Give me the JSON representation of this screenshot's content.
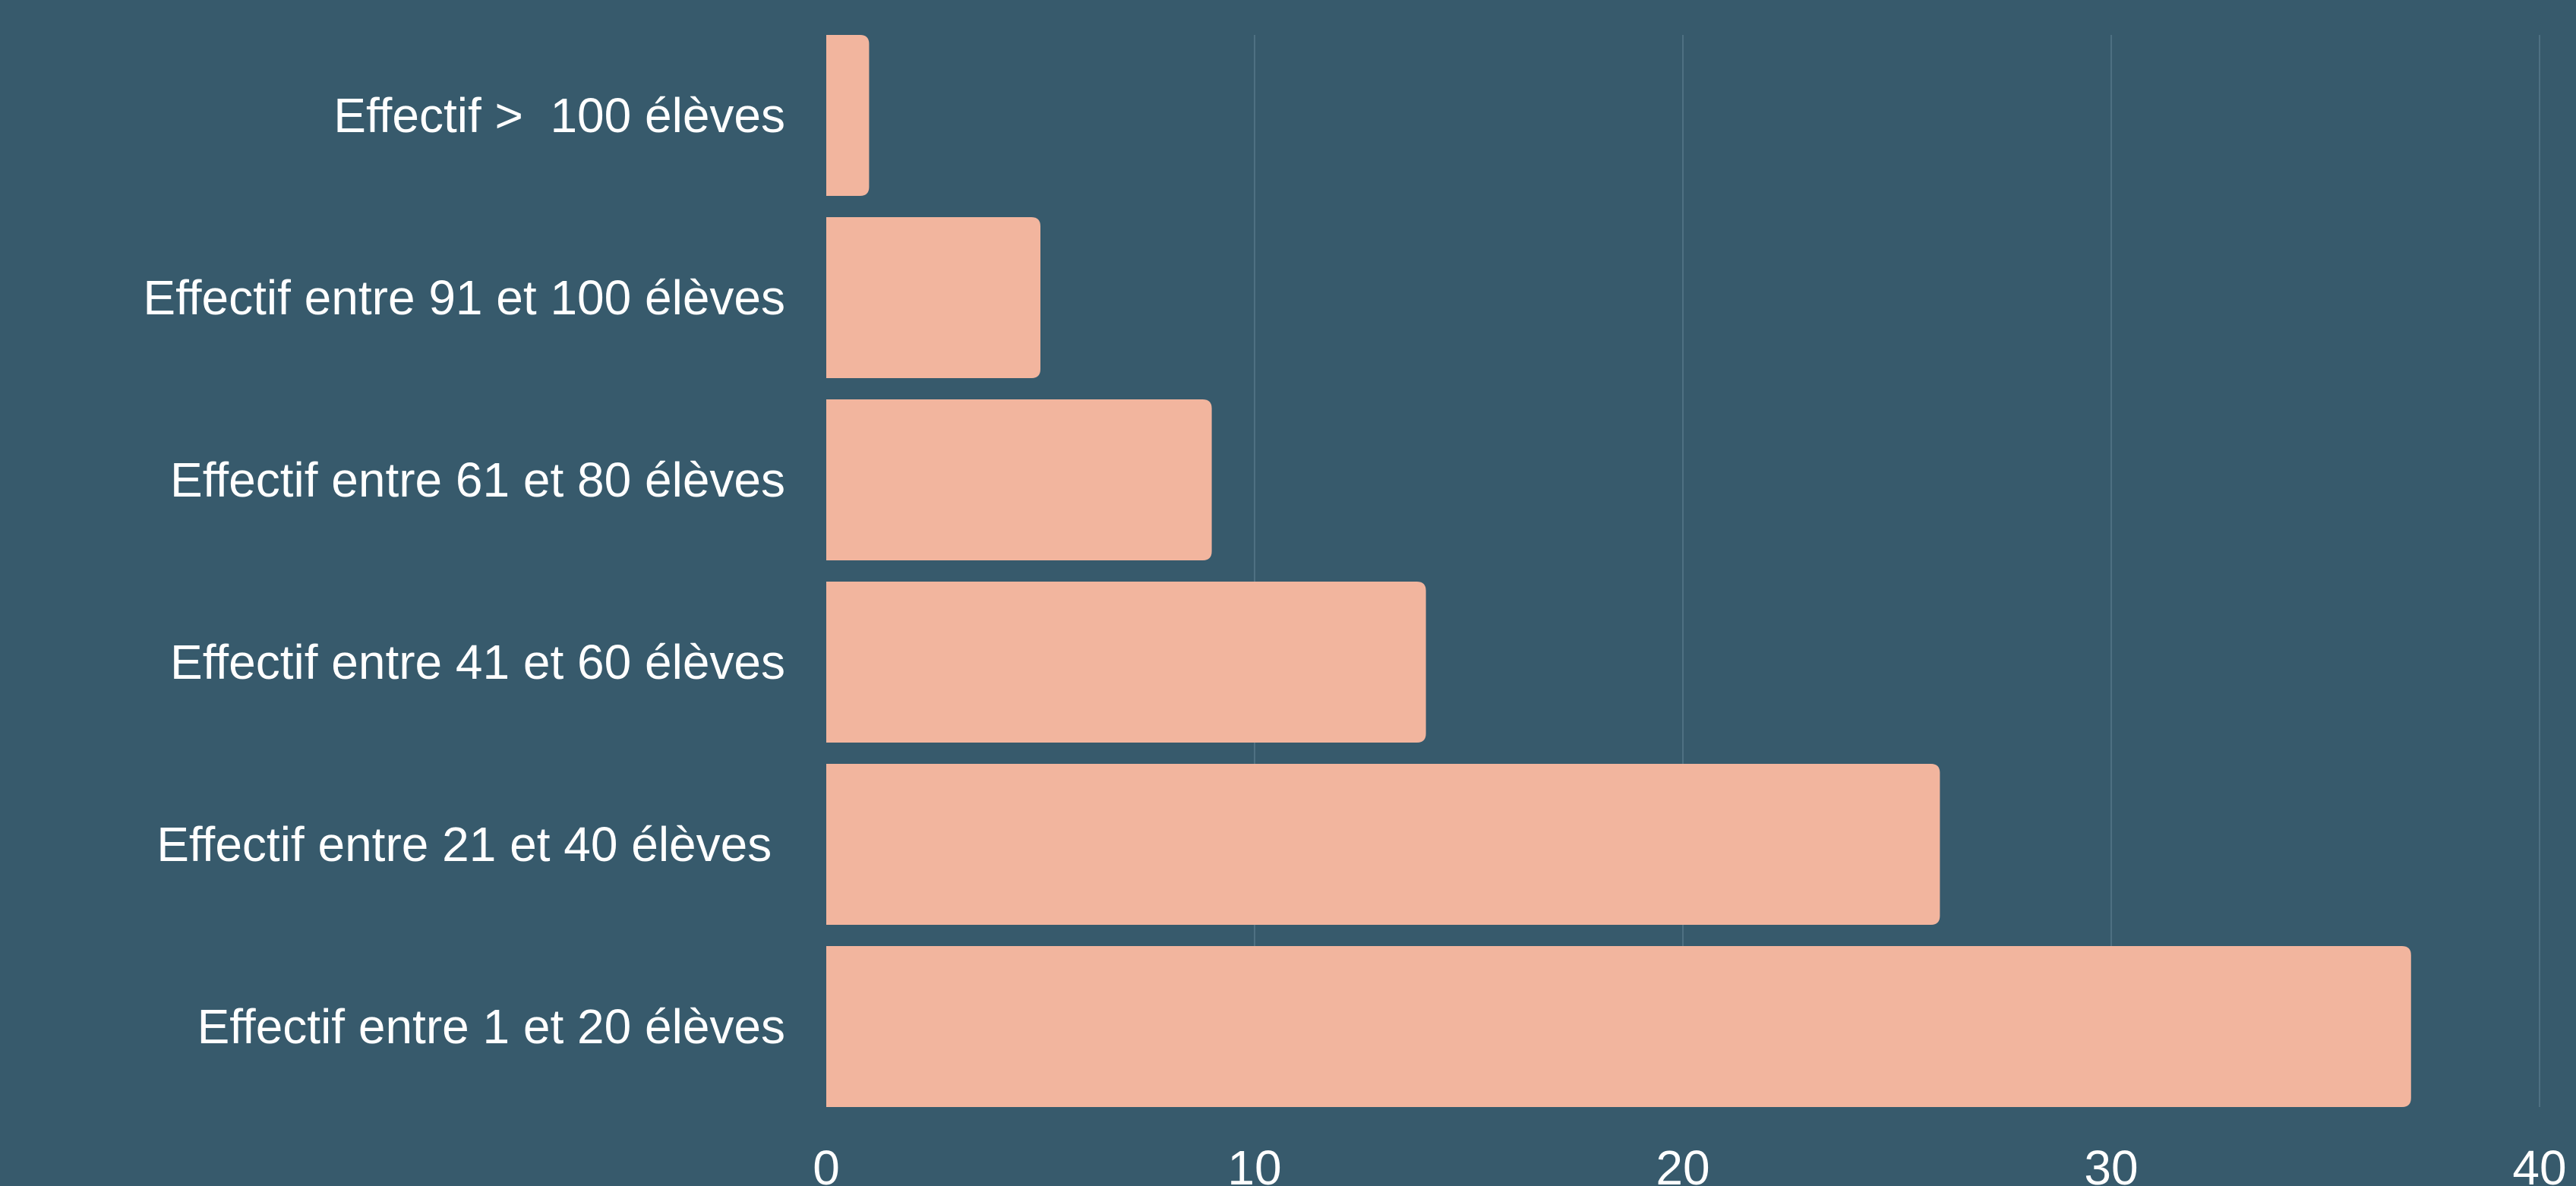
{
  "colors": {
    "background": "#375a6c",
    "bar": "#f2b59e",
    "grid": "#4e7082",
    "text": "#ffffff"
  },
  "chart_data": {
    "type": "bar",
    "orientation": "horizontal",
    "title": "",
    "xlabel": "",
    "ylabel": "",
    "categories": [
      "Effectif >  100 élèves",
      "Effectif entre 91 et 100 élèves",
      "Effectif entre 61 et 80 élèves",
      "Effectif entre 41 et 60 élèves",
      "Effectif entre 21 et 40 élèves ",
      "Effectif entre 1 et 20 élèves"
    ],
    "values": [
      1,
      5,
      9,
      14,
      26,
      37
    ],
    "xlim": [
      0,
      40
    ],
    "xticks": [
      "0",
      "10",
      "20",
      "30",
      "40"
    ],
    "grid": true,
    "legend": "none"
  }
}
